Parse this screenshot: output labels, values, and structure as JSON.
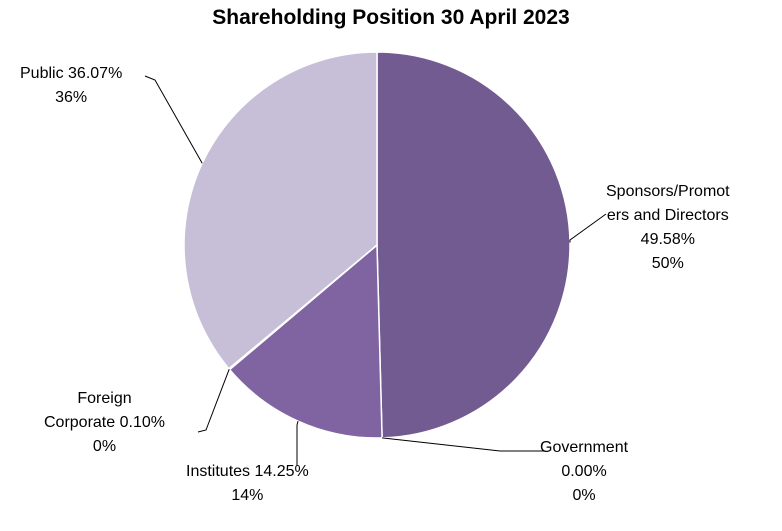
{
  "chart_data": {
    "type": "pie",
    "title": "Shareholding Position 30 April 2023",
    "slices": [
      {
        "label_lines": [
          "Sponsors/Promot",
          "ers and Directors",
          "49.58%"
        ],
        "value": 49.58,
        "rounded": "50%",
        "color": "#715b91"
      },
      {
        "label_lines": [
          "Government",
          "0.00%"
        ],
        "value": 0.0,
        "rounded": "0%",
        "color": "#8e7fb0"
      },
      {
        "label_lines": [
          "Institutes 14.25%"
        ],
        "value": 14.25,
        "rounded": "14%",
        "color": "#8064a2"
      },
      {
        "label_lines": [
          "Foreign",
          "Corporate 0.10%"
        ],
        "value": 0.1,
        "rounded": "0%",
        "color": "#5e4a7d"
      },
      {
        "label_lines": [
          "Public 36.07%"
        ],
        "value": 36.07,
        "rounded": "36%",
        "color": "#c7bfd7"
      }
    ],
    "start_angle_deg": 0,
    "direction": "clockwise",
    "legend": "none"
  }
}
